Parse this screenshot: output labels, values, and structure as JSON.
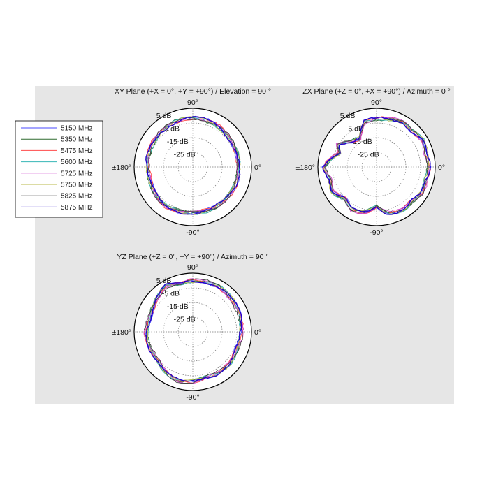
{
  "colors": {
    "page_background": "#ffffff",
    "figure_background": "#e6e6e6",
    "plot_background": "#ffffff",
    "outer_ring": "#000000",
    "grid": "#777777"
  },
  "legend": {
    "placement": "left",
    "items": [
      {
        "label": "5150 MHz",
        "color": "#4a4aff"
      },
      {
        "label": "5350 MHz",
        "color": "#2f6a2f"
      },
      {
        "label": "5475 MHz",
        "color": "#ff4a4a"
      },
      {
        "label": "5600 MHz",
        "color": "#36b6b6"
      },
      {
        "label": "5725 MHz",
        "color": "#cc44cc"
      },
      {
        "label": "5750 MHz",
        "color": "#b8b84a"
      },
      {
        "label": "5825 MHz",
        "color": "#444444"
      },
      {
        "label": "5875 MHz",
        "color": "#2200cc"
      }
    ]
  },
  "chart_data": [
    {
      "type": "polar",
      "title": "XY Plane (+X = 0°, +Y = +90°) / Elevation = 90 °",
      "angle_labels": {
        "top": "90°",
        "right": "0°",
        "bottom": "-90°",
        "left": "±180°"
      },
      "radial_labels": [
        "5 dB",
        "-5 dB",
        "-15 dB",
        "-25 dB"
      ],
      "radial_range_db": [
        -35,
        5
      ],
      "grid": true,
      "series_note": "8 frequency traces, gain in dB vs angle",
      "base_pattern": [
        [
          0,
          -3.5
        ],
        [
          20,
          -3
        ],
        [
          40,
          -2.5
        ],
        [
          60,
          -2
        ],
        [
          80,
          -1.5
        ],
        [
          100,
          -1.2
        ],
        [
          120,
          -1.5
        ],
        [
          135,
          -2
        ],
        [
          150,
          -3
        ],
        [
          170,
          -3.5
        ],
        [
          180,
          -4
        ],
        [
          200,
          -3.8
        ],
        [
          220,
          -2.5
        ],
        [
          235,
          -2
        ],
        [
          250,
          -3
        ],
        [
          270,
          -3.5
        ],
        [
          290,
          -3
        ],
        [
          310,
          -2.8
        ],
        [
          330,
          -3.2
        ],
        [
          350,
          -3.6
        ]
      ]
    },
    {
      "type": "polar",
      "title": "ZX Plane (+Z = 0°, +X = +90°) / Azimuth = 0 °",
      "angle_labels": {
        "top": "90°",
        "right": "0°",
        "bottom": "-90°",
        "left": "±180°"
      },
      "radial_labels": [
        "5 dB",
        "-5 dB",
        "-15 dB",
        "-25 dB"
      ],
      "radial_range_db": [
        -35,
        5
      ],
      "grid": true,
      "series_note": "8 frequency traces, gain in dB vs angle",
      "base_pattern": [
        [
          0,
          1
        ],
        [
          15,
          0
        ],
        [
          30,
          2
        ],
        [
          45,
          0
        ],
        [
          60,
          1
        ],
        [
          75,
          -1
        ],
        [
          90,
          -2
        ],
        [
          105,
          -3
        ],
        [
          120,
          -12
        ],
        [
          135,
          -10
        ],
        [
          150,
          -4
        ],
        [
          160,
          -8
        ],
        [
          170,
          -3
        ],
        [
          180,
          1
        ],
        [
          195,
          -2
        ],
        [
          210,
          0
        ],
        [
          225,
          -4
        ],
        [
          240,
          -1
        ],
        [
          255,
          -3
        ],
        [
          270,
          -8
        ],
        [
          285,
          -2
        ],
        [
          300,
          0
        ],
        [
          315,
          -1
        ],
        [
          330,
          1
        ],
        [
          345,
          0
        ]
      ]
    },
    {
      "type": "polar",
      "title": "YZ Plane (+Z = 0°, +Y = +90°) / Azimuth = 90 °",
      "angle_labels": {
        "top": "90°",
        "right": "0°",
        "bottom": "-90°",
        "left": "±180°"
      },
      "radial_labels": [
        "5 dB",
        "-5 dB",
        "-15 dB",
        "-25 dB"
      ],
      "radial_range_db": [
        -35,
        5
      ],
      "grid": true,
      "series_note": "8 frequency traces, gain in dB vs angle",
      "base_pattern": [
        [
          0,
          -2
        ],
        [
          20,
          -1
        ],
        [
          40,
          0
        ],
        [
          60,
          1
        ],
        [
          75,
          0.5
        ],
        [
          90,
          0
        ],
        [
          105,
          -1
        ],
        [
          120,
          1.5
        ],
        [
          135,
          -1
        ],
        [
          150,
          -3
        ],
        [
          165,
          -4
        ],
        [
          180,
          -3
        ],
        [
          200,
          -3.5
        ],
        [
          220,
          -4
        ],
        [
          240,
          -1
        ],
        [
          255,
          0
        ],
        [
          270,
          -1
        ],
        [
          285,
          -3
        ],
        [
          300,
          -2
        ],
        [
          320,
          -1.5
        ],
        [
          340,
          -2.5
        ]
      ]
    }
  ]
}
